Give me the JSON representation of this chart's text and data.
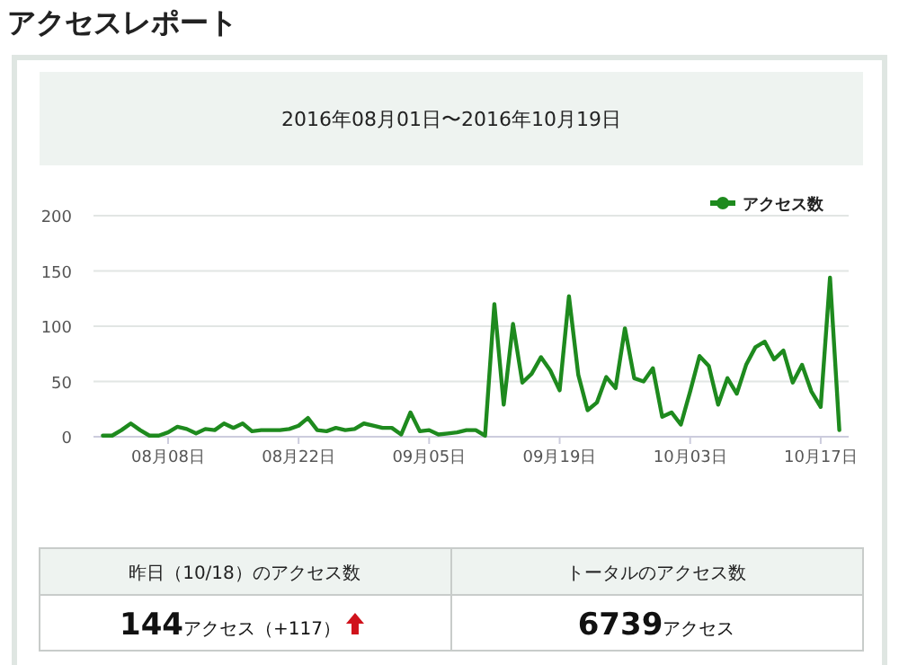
{
  "chart_data": {
    "type": "line",
    "title": "アクセスレポート",
    "subtitle": "2016年08月01日〜2016年10月19日",
    "x": [
      "2016-08-01",
      "2016-08-02",
      "2016-08-03",
      "2016-08-04",
      "2016-08-05",
      "2016-08-06",
      "2016-08-07",
      "2016-08-08",
      "2016-08-09",
      "2016-08-10",
      "2016-08-11",
      "2016-08-12",
      "2016-08-13",
      "2016-08-14",
      "2016-08-15",
      "2016-08-16",
      "2016-08-17",
      "2016-08-18",
      "2016-08-19",
      "2016-08-20",
      "2016-08-21",
      "2016-08-22",
      "2016-08-23",
      "2016-08-24",
      "2016-08-25",
      "2016-08-26",
      "2016-08-27",
      "2016-08-28",
      "2016-08-29",
      "2016-08-30",
      "2016-08-31",
      "2016-09-01",
      "2016-09-02",
      "2016-09-03",
      "2016-09-04",
      "2016-09-05",
      "2016-09-06",
      "2016-09-07",
      "2016-09-08",
      "2016-09-09",
      "2016-09-10",
      "2016-09-11",
      "2016-09-12",
      "2016-09-13",
      "2016-09-14",
      "2016-09-15",
      "2016-09-16",
      "2016-09-17",
      "2016-09-18",
      "2016-09-19",
      "2016-09-20",
      "2016-09-21",
      "2016-09-22",
      "2016-09-23",
      "2016-09-24",
      "2016-09-25",
      "2016-09-26",
      "2016-09-27",
      "2016-09-28",
      "2016-09-29",
      "2016-09-30",
      "2016-10-01",
      "2016-10-02",
      "2016-10-03",
      "2016-10-04",
      "2016-10-05",
      "2016-10-06",
      "2016-10-07",
      "2016-10-08",
      "2016-10-09",
      "2016-10-10",
      "2016-10-11",
      "2016-10-12",
      "2016-10-13",
      "2016-10-14",
      "2016-10-15",
      "2016-10-16",
      "2016-10-17",
      "2016-10-18",
      "2016-10-19"
    ],
    "series": [
      {
        "name": "アクセス数",
        "color": "#1e8a1e",
        "values": [
          1,
          1,
          6,
          12,
          6,
          1,
          1,
          4,
          9,
          7,
          3,
          7,
          6,
          12,
          8,
          12,
          5,
          6,
          6,
          6,
          7,
          10,
          17,
          6,
          5,
          8,
          6,
          7,
          12,
          10,
          8,
          8,
          2,
          22,
          5,
          6,
          2,
          3,
          4,
          6,
          6,
          1,
          120,
          29,
          102,
          49,
          57,
          72,
          60,
          42,
          127,
          56,
          24,
          31,
          54,
          44,
          98,
          53,
          50,
          62,
          18,
          22,
          11,
          41,
          73,
          64,
          29,
          53,
          39,
          65,
          81,
          86,
          70,
          78,
          49,
          65,
          41,
          27,
          144,
          6
        ]
      }
    ],
    "xlim": [
      "2016-07-31",
      "2016-10-20"
    ],
    "xticks": [
      {
        "value": "2016-08-08",
        "label": "08月08日"
      },
      {
        "value": "2016-08-22",
        "label": "08月22日"
      },
      {
        "value": "2016-09-05",
        "label": "09月05日"
      },
      {
        "value": "2016-09-19",
        "label": "09月19日"
      },
      {
        "value": "2016-10-03",
        "label": "10月03日"
      },
      {
        "value": "2016-10-17",
        "label": "10月17日"
      }
    ],
    "ylim": [
      0,
      200
    ],
    "yticks": [
      0,
      50,
      100,
      150,
      200
    ],
    "grid": "y",
    "legend": "top right",
    "line_style": "solid",
    "annotations": [
      "昨日（10/18）のアクセス数",
      "144アクセス（+117）",
      "トータルのアクセス数",
      "6739アクセス"
    ]
  }
}
